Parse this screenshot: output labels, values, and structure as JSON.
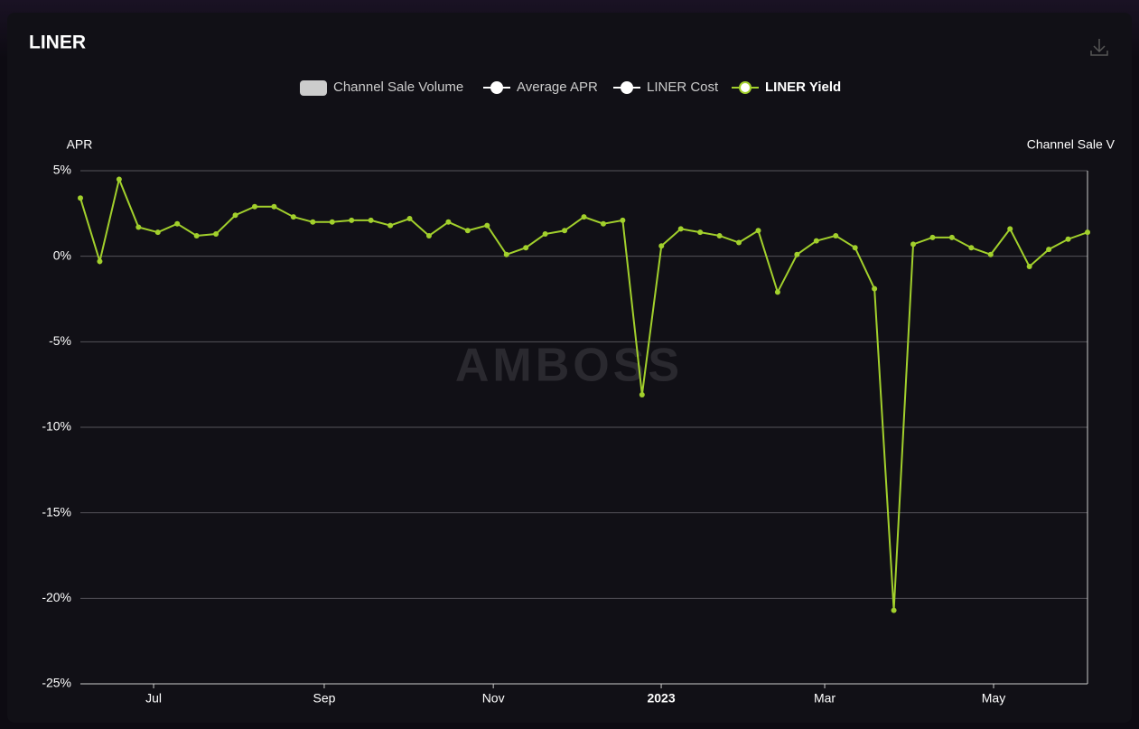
{
  "chart_data": {
    "type": "line",
    "title": "LINER",
    "watermark": "AMBOSS",
    "y_label": "APR",
    "y2_label": "Channel Sale V",
    "x": [
      0,
      1,
      2,
      3,
      4,
      5,
      6,
      7,
      8,
      9,
      10,
      11,
      12,
      13,
      14,
      15,
      16,
      17,
      18,
      19,
      20,
      21,
      22,
      23,
      24,
      25,
      26,
      27,
      28,
      29,
      30,
      31,
      32,
      33,
      34,
      35,
      36,
      37,
      38,
      39,
      40,
      41,
      42,
      43,
      44,
      45,
      46,
      47,
      48,
      49,
      50,
      51,
      52
    ],
    "xlim": [
      0,
      52
    ],
    "xticks": [
      {
        "value": 3.78,
        "label": "Jul"
      },
      {
        "value": 12.59,
        "label": "Sep"
      },
      {
        "value": 21.32,
        "label": "Nov"
      },
      {
        "value": 29.99,
        "label": "2023"
      },
      {
        "value": 38.43,
        "label": "Mar"
      },
      {
        "value": 47.15,
        "label": "May"
      }
    ],
    "ylim": [
      -25,
      5
    ],
    "yticks": [
      {
        "value": 5,
        "label": "5%"
      },
      {
        "value": 0,
        "label": "0%"
      },
      {
        "value": -5,
        "label": "-5%"
      },
      {
        "value": -10,
        "label": "-10%"
      },
      {
        "value": -15,
        "label": "-15%"
      },
      {
        "value": -20,
        "label": "-20%"
      },
      {
        "value": -25,
        "label": "-25%"
      }
    ],
    "grid": true,
    "hidden_series": [
      {
        "name": "Channel Sale Volume",
        "color": "#cccccc",
        "symbol": "rect"
      },
      {
        "name": "Average APR",
        "color": "#ffffff",
        "symbol": "line"
      },
      {
        "name": "LINER Cost",
        "color": "#ffffff",
        "symbol": "line"
      }
    ],
    "series": [
      {
        "name": "LINER Yield",
        "color": "#a2d02c",
        "values": [
          3.4,
          -0.3,
          4.5,
          1.7,
          1.4,
          1.9,
          1.2,
          1.3,
          2.4,
          2.9,
          2.9,
          2.3,
          2.0,
          2.0,
          2.1,
          2.1,
          1.8,
          2.2,
          1.2,
          2.0,
          1.5,
          1.8,
          0.1,
          0.5,
          1.3,
          1.5,
          2.3,
          1.9,
          2.1,
          -8.1,
          0.6,
          1.6,
          1.4,
          1.2,
          0.8,
          1.5,
          -2.1,
          0.1,
          0.9,
          1.2,
          0.5,
          -1.9,
          -20.7,
          0.7,
          1.1,
          1.1,
          0.5,
          0.1,
          1.6,
          -0.6,
          0.4,
          1.0,
          1.4
        ]
      }
    ]
  }
}
